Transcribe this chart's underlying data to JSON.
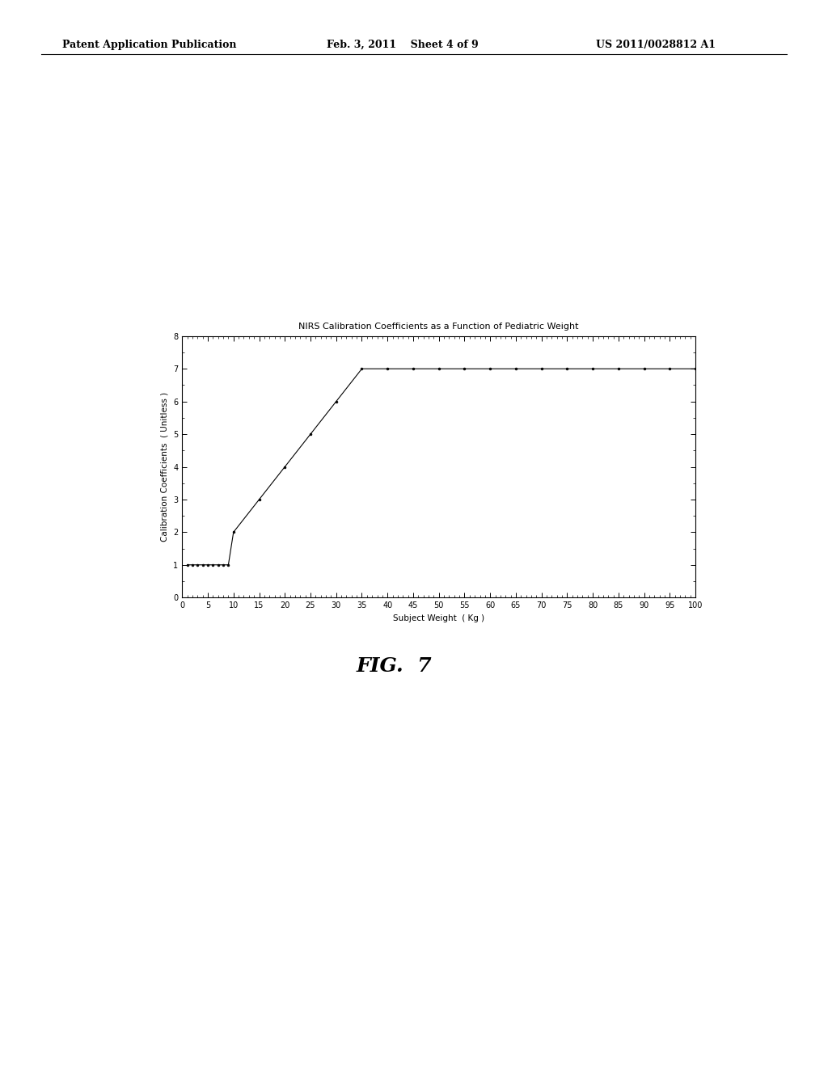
{
  "title": "NIRS Calibration Coefficients as a Function of Pediatric Weight",
  "xlabel": "Subject Weight  ( Kg )",
  "ylabel": "Calibration Coefficients  ( Unitless )",
  "x_data": [
    1,
    2,
    3,
    4,
    5,
    6,
    7,
    8,
    9,
    10,
    15,
    20,
    25,
    30,
    35,
    40,
    45,
    50,
    55,
    60,
    65,
    70,
    75,
    80,
    85,
    90,
    95,
    100
  ],
  "y_data": [
    1,
    1,
    1,
    1,
    1,
    1,
    1,
    1,
    1,
    2,
    3,
    4,
    5,
    6,
    7,
    7,
    7,
    7,
    7,
    7,
    7,
    7,
    7,
    7,
    7,
    7,
    7,
    7
  ],
  "xlim": [
    0,
    100
  ],
  "ylim": [
    0,
    8
  ],
  "xticks": [
    0,
    5,
    10,
    15,
    20,
    25,
    30,
    35,
    40,
    45,
    50,
    55,
    60,
    65,
    70,
    75,
    80,
    85,
    90,
    95,
    100
  ],
  "yticks": [
    0,
    1,
    2,
    3,
    4,
    5,
    6,
    7,
    8
  ],
  "line_color": "#000000",
  "marker": ".",
  "marker_size": 4,
  "marker_color": "#000000",
  "background_color": "#ffffff",
  "title_fontsize": 8,
  "axis_label_fontsize": 7.5,
  "tick_fontsize": 7,
  "fig_caption": "FIG.  7",
  "header_left": "Patent Application Publication",
  "header_center": "Feb. 3, 2011    Sheet 4 of 9",
  "header_right": "US 2011/0028812 A1"
}
